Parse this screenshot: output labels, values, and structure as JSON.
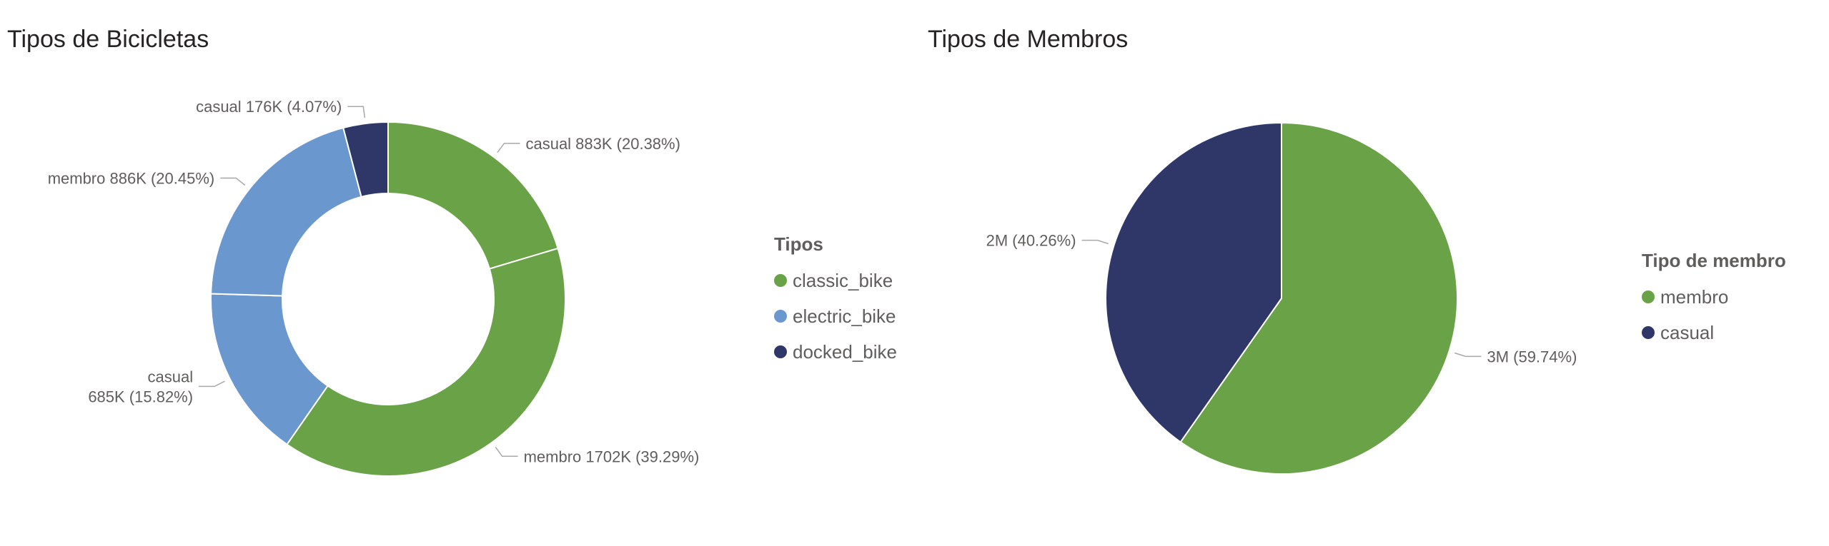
{
  "colors": {
    "green": "#6aa247",
    "light_blue": "#6b97cf",
    "navy": "#2f3668"
  },
  "chart_data": [
    {
      "type": "pie",
      "variant": "donut",
      "title": "Tipos de Bicicletas",
      "legend": {
        "title": "Tipos",
        "position": "right",
        "items": [
          {
            "name": "classic_bike",
            "color": "#6aa247"
          },
          {
            "name": "electric_bike",
            "color": "#6b97cf"
          },
          {
            "name": "docked_bike",
            "color": "#2f3668"
          }
        ]
      },
      "slices": [
        {
          "bike_type": "classic_bike",
          "member_type": "casual",
          "value": 883,
          "percent": 20.38,
          "label": "casual 883K (20.38%)",
          "color": "#6aa247"
        },
        {
          "bike_type": "classic_bike",
          "member_type": "membro",
          "value": 1702,
          "percent": 39.29,
          "label": "membro 1702K (39.29%)",
          "color": "#6aa247"
        },
        {
          "bike_type": "electric_bike",
          "member_type": "casual",
          "value": 685,
          "percent": 15.82,
          "label_lines": [
            "casual",
            "685K (15.82%)"
          ],
          "color": "#6b97cf"
        },
        {
          "bike_type": "electric_bike",
          "member_type": "membro",
          "value": 886,
          "percent": 20.45,
          "label": "membro 886K (20.45%)",
          "color": "#6b97cf"
        },
        {
          "bike_type": "docked_bike",
          "member_type": "casual",
          "value": 176,
          "percent": 4.07,
          "label": "casual 176K (4.07%)",
          "color": "#2f3668"
        }
      ]
    },
    {
      "type": "pie",
      "title": "Tipos de Membros",
      "legend": {
        "title": "Tipo de membro",
        "position": "right",
        "items": [
          {
            "name": "membro",
            "color": "#6aa247"
          },
          {
            "name": "casual",
            "color": "#2f3668"
          }
        ]
      },
      "slices": [
        {
          "member_type": "membro",
          "percent": 59.74,
          "label": "3M (59.74%)",
          "color": "#6aa247"
        },
        {
          "member_type": "casual",
          "percent": 40.26,
          "label": "2M (40.26%)",
          "color": "#2f3668"
        }
      ]
    }
  ]
}
